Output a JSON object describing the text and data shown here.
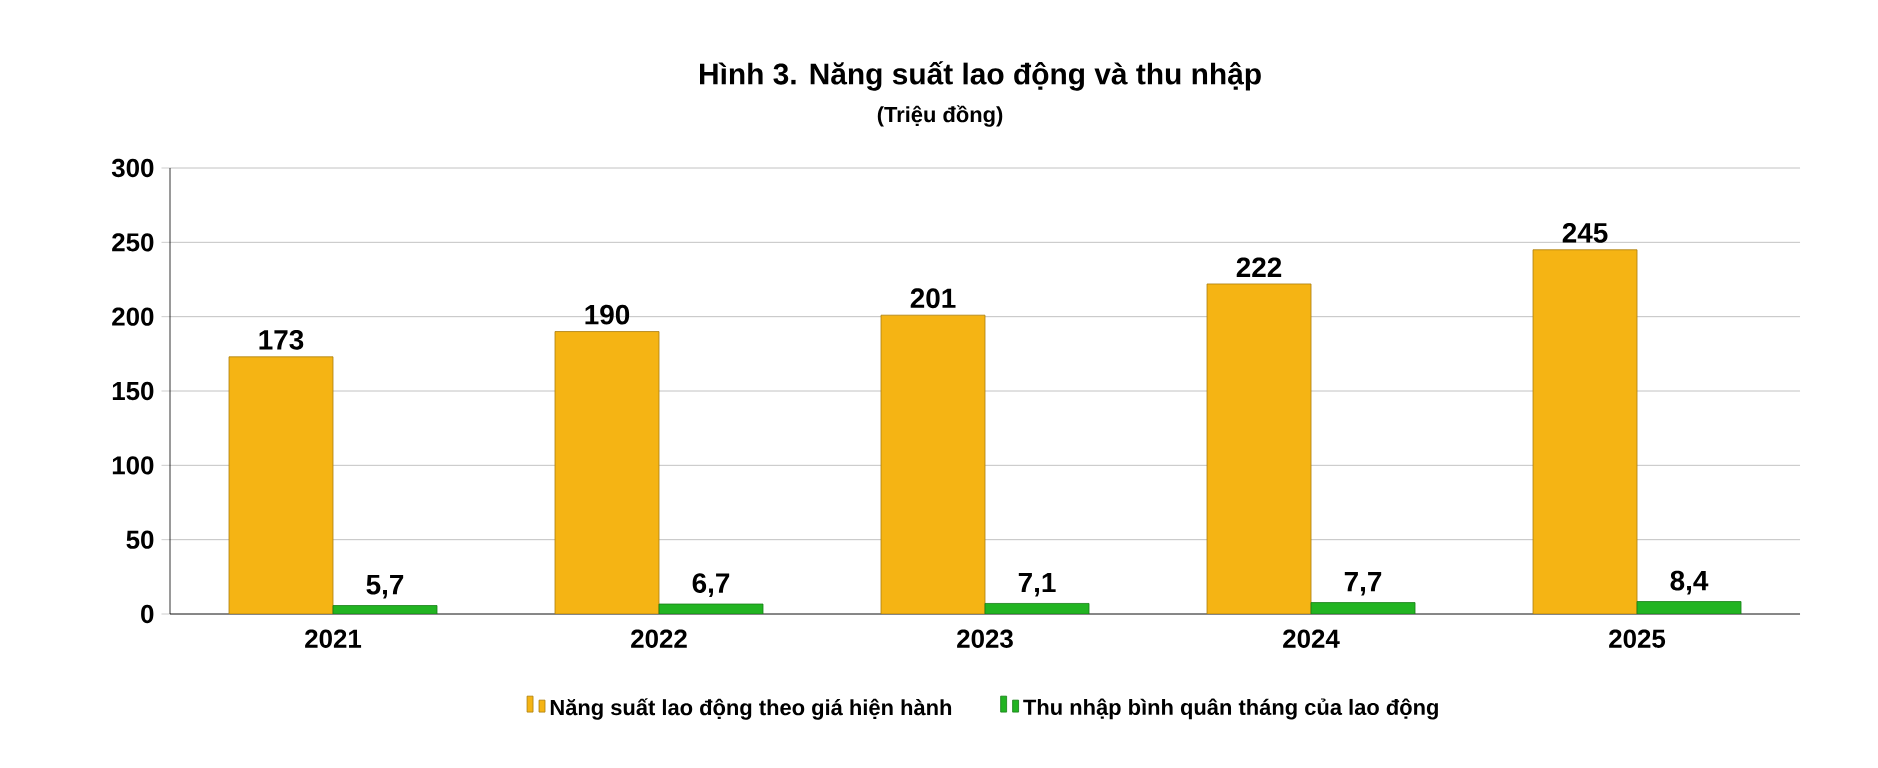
{
  "chart_data": {
    "type": "bar",
    "title": "Hình 3. Năng suất lao động và thu nhập",
    "subtitle": "(Triệu đồng)",
    "categories": [
      "2021",
      "2022",
      "2023",
      "2024",
      "2025"
    ],
    "series": [
      {
        "name": "Năng suất lao động theo giá hiện hành",
        "color": "#f5b414",
        "values": [
          173,
          190,
          201,
          222,
          245
        ],
        "value_labels": [
          "173",
          "190",
          "201",
          "222",
          "245"
        ]
      },
      {
        "name": "Thu nhập bình quân tháng của lao động",
        "color": "#22b422",
        "values": [
          5.7,
          6.7,
          7.1,
          7.7,
          8.4
        ],
        "value_labels": [
          "5,7",
          "6,7",
          "7,1",
          "7,7",
          "8,4"
        ]
      }
    ],
    "ylim": [
      0,
      300
    ],
    "yticks": [
      0,
      50,
      100,
      150,
      200,
      250,
      300
    ],
    "grid": "y",
    "legend": "bottom"
  }
}
